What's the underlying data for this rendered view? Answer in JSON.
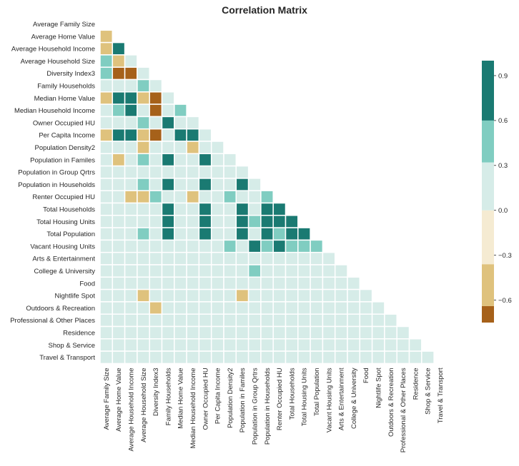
{
  "chart_data": {
    "type": "heatmap",
    "title": "Correlation Matrix",
    "xlabel": "",
    "ylabel": "",
    "mask": "upper-triangle-and-diagonal",
    "labels": [
      "Average Family Size",
      "Average Home Value",
      "Average Household Income",
      "Average Household Size",
      "Diversity Index3",
      "Family Households",
      "Median Home Value",
      "Median Household Income",
      "Owner Occupied HU",
      "Per Capita Income",
      "Population Density2",
      "Population in Familes",
      "Population in Group Qrtrs",
      "Population in Households",
      "Renter Occupied HU",
      "Total Households",
      "Total Housing Units",
      "Total Population",
      "Vacant Housing Units",
      "Arts & Entertainment",
      "College & University",
      "Food",
      "Nightlife Spot",
      "Outdoors & Recreation",
      "Professional & Other Places",
      "Residence",
      "Shop & Service",
      "Travel & Transport"
    ],
    "values": [
      [],
      [
        -0.5
      ],
      [
        -0.5,
        0.9
      ],
      [
        0.4,
        -0.5,
        0.2
      ],
      [
        0.5,
        -0.8,
        -0.8,
        0.2
      ],
      [
        0.2,
        0.0,
        0.2,
        0.5,
        0.2
      ],
      [
        -0.5,
        0.9,
        0.9,
        -0.5,
        -0.8,
        0.0
      ],
      [
        0.0,
        0.5,
        0.9,
        0.2,
        -0.8,
        0.2,
        0.5
      ],
      [
        0.2,
        0.0,
        0.2,
        0.5,
        0.0,
        0.9,
        0.0,
        0.2
      ],
      [
        -0.5,
        0.9,
        0.9,
        -0.5,
        -0.8,
        0.0,
        0.9,
        0.9,
        0.0
      ],
      [
        0.0,
        0.0,
        0.0,
        -0.5,
        0.2,
        0.0,
        0.0,
        -0.5,
        0.0,
        0.2
      ],
      [
        0.2,
        -0.5,
        0.0,
        0.5,
        0.2,
        0.9,
        0.0,
        0.2,
        0.9,
        0.0,
        0.2
      ],
      [
        0.0,
        0.0,
        0.0,
        0.0,
        0.0,
        0.0,
        0.2,
        0.0,
        0.0,
        0.0,
        0.2,
        0.0
      ],
      [
        0.2,
        0.0,
        0.0,
        0.5,
        0.2,
        0.9,
        0.0,
        0.2,
        0.9,
        0.0,
        0.2,
        0.9,
        0.2
      ],
      [
        0.0,
        0.0,
        -0.5,
        -0.5,
        0.5,
        0.2,
        0.0,
        -0.5,
        0.2,
        0.0,
        0.5,
        0.2,
        0.2,
        0.5
      ],
      [
        0.0,
        0.0,
        0.0,
        0.0,
        0.2,
        0.9,
        0.0,
        0.0,
        0.9,
        0.0,
        0.2,
        0.9,
        0.2,
        0.9,
        0.9
      ],
      [
        0.0,
        0.0,
        0.0,
        0.0,
        0.2,
        0.9,
        0.0,
        0.0,
        0.9,
        0.0,
        0.2,
        0.9,
        0.5,
        0.9,
        0.9,
        0.9
      ],
      [
        0.2,
        0.0,
        0.0,
        0.5,
        0.2,
        0.9,
        0.0,
        0.0,
        0.9,
        0.0,
        0.2,
        0.9,
        0.2,
        0.9,
        0.5,
        0.9,
        0.9
      ],
      [
        0.2,
        0.0,
        0.0,
        0.2,
        0.2,
        0.2,
        0.0,
        0.0,
        0.2,
        0.0,
        0.5,
        0.2,
        0.9,
        0.5,
        0.9,
        0.5,
        0.5,
        0.5
      ],
      [
        0.0,
        0.2,
        0.0,
        0.0,
        0.2,
        0.0,
        0.2,
        0.0,
        0.0,
        0.2,
        0.2,
        0.0,
        0.0,
        0.0,
        0.0,
        0.0,
        0.0,
        0.0,
        0.2
      ],
      [
        0.0,
        0.2,
        0.0,
        0.0,
        0.2,
        0.0,
        0.2,
        0.0,
        0.0,
        0.2,
        0.2,
        0.0,
        0.5,
        0.0,
        0.2,
        0.0,
        0.0,
        0.0,
        0.2,
        0.0
      ],
      [
        0.0,
        0.2,
        0.0,
        0.0,
        0.2,
        0.0,
        0.2,
        0.0,
        0.0,
        0.2,
        0.2,
        0.0,
        0.2,
        0.0,
        0.2,
        0.0,
        0.0,
        0.0,
        0.2,
        0.2,
        0.0
      ],
      [
        0.0,
        0.2,
        0.0,
        -0.5,
        0.2,
        0.0,
        0.2,
        0.0,
        0.0,
        0.2,
        0.2,
        -0.5,
        0.2,
        0.0,
        0.2,
        0.0,
        0.0,
        0.0,
        0.2,
        0.2,
        0.2,
        0.2
      ],
      [
        0.0,
        0.2,
        0.2,
        0.0,
        -0.5,
        0.2,
        0.2,
        0.2,
        0.2,
        0.2,
        0.0,
        0.0,
        0.0,
        0.0,
        0.0,
        0.0,
        0.0,
        0.0,
        0.0,
        0.0,
        0.0,
        0.0,
        0.2
      ],
      [
        0.2,
        0.2,
        0.2,
        0.2,
        0.2,
        0.0,
        0.2,
        0.2,
        0.0,
        0.2,
        0.0,
        0.0,
        0.0,
        0.0,
        0.0,
        0.0,
        0.0,
        0.0,
        0.0,
        0.0,
        0.0,
        0.0,
        0.2,
        0.0
      ],
      [
        0.2,
        0.0,
        0.0,
        0.2,
        0.2,
        0.0,
        0.0,
        0.0,
        0.0,
        0.0,
        0.2,
        0.0,
        0.2,
        0.2,
        0.2,
        0.2,
        0.2,
        0.2,
        0.0,
        0.0,
        0.0,
        0.0,
        0.0,
        0.0,
        0.2
      ],
      [
        0.0,
        0.0,
        0.0,
        0.2,
        0.2,
        0.0,
        0.0,
        0.0,
        0.0,
        0.0,
        0.2,
        0.0,
        0.2,
        0.2,
        0.0,
        0.0,
        0.0,
        0.0,
        0.0,
        0.0,
        0.2,
        0.0,
        0.0,
        0.2,
        0.0,
        0.0
      ],
      [
        0.2,
        0.0,
        0.0,
        0.2,
        0.2,
        0.0,
        0.0,
        0.0,
        0.0,
        0.0,
        0.0,
        0.0,
        0.2,
        0.0,
        0.0,
        0.0,
        0.0,
        0.0,
        0.0,
        0.0,
        0.0,
        0.0,
        0.0,
        0.0,
        0.0,
        0.0,
        0.2
      ]
    ],
    "colorbar": {
      "ticks": [
        "−0.6",
        "−0.3",
        "0.0",
        "0.3",
        "0.6",
        "0.9"
      ],
      "tick_values": [
        -0.6,
        -0.3,
        0.0,
        0.3,
        0.6,
        0.9
      ],
      "vmin": -0.75,
      "vmax": 1.0,
      "bins": [
        {
          "min": -0.75,
          "max": -0.64,
          "color": "#a6611a"
        },
        {
          "min": -0.64,
          "max": -0.36,
          "color": "#dfc27d"
        },
        {
          "min": -0.36,
          "max": 0.0,
          "color": "#f5ebd2"
        },
        {
          "min": 0.0,
          "max": 0.32,
          "color": "#d6ece8"
        },
        {
          "min": 0.32,
          "max": 0.6,
          "color": "#80cdc1"
        },
        {
          "min": 0.6,
          "max": 1.0,
          "color": "#1a7a72"
        }
      ]
    },
    "grid": false,
    "legend": "colorbar-right"
  }
}
